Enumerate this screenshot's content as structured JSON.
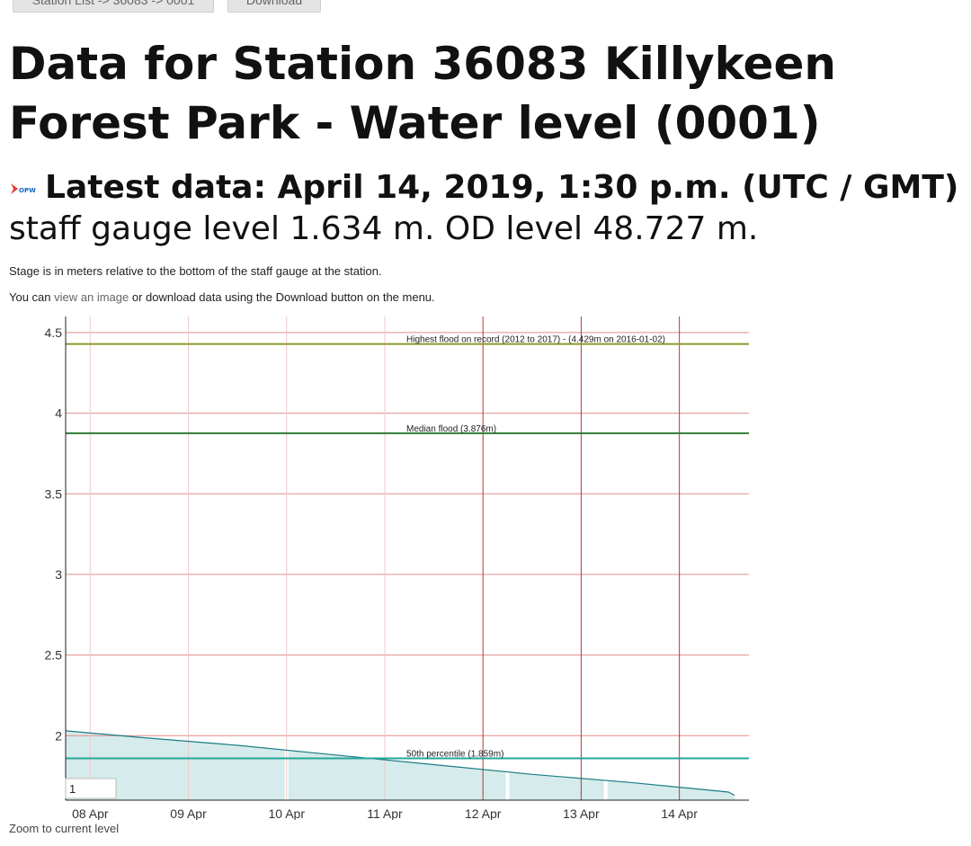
{
  "nav": {
    "breadcrumb_label": "Station List -> 36083 -> 0001",
    "download_label": "Download"
  },
  "header": {
    "title": "Data for Station 36083 Killykeen Forest Park - Water level (0001)"
  },
  "latest": {
    "prefix": "Latest data: April 14, 2019, 1:30 p.m. (UTC / GMT)",
    "staff_text": " staff gauge level 1.634 m. OD level 48.727 m.",
    "logo_text": "OPW"
  },
  "notes": {
    "stage": "Stage is in meters relative to the bottom of the staff gauge at the station.",
    "you_can": "You can ",
    "view_link": "view an image",
    "rest": " or download data using the Download button on the menu."
  },
  "chart_data": {
    "type": "area",
    "x": [
      "2019-04-07T18:00",
      "2019-04-08T12:00",
      "2019-04-09T12:00",
      "2019-04-10T12:00",
      "2019-04-11T12:00",
      "2019-04-12T12:00",
      "2019-04-13T12:00",
      "2019-04-14T12:00",
      "2019-04-14T13:30"
    ],
    "series": [
      {
        "values": [
          2.03,
          1.99,
          1.94,
          1.88,
          1.82,
          1.76,
          1.71,
          1.65,
          1.63
        ],
        "color": "#1b7c84"
      }
    ],
    "xticks": [
      "08 Apr",
      "09 Apr",
      "10 Apr",
      "11 Apr",
      "12 Apr",
      "13 Apr",
      "14 Apr"
    ],
    "yticks": [
      "2",
      "2.5",
      "3",
      "3.5",
      "4",
      "4.5"
    ],
    "ylim": [
      1.6,
      4.6
    ],
    "gaps": [
      "2019-04-10T00:00",
      "2019-04-12T06:00",
      "2019-04-13T06:00"
    ],
    "grid": true,
    "reference_lines": [
      {
        "label": "Highest flood on record (2012 to 2017) - (4.429m on 2016-01-02)",
        "value": 4.429,
        "color": "#8e9a2c"
      },
      {
        "label": "Median flood (3.876m)",
        "value": 3.876,
        "color": "#2e7d32"
      },
      {
        "label": "50th percentile (1.859m)",
        "value": 1.859,
        "color": "#26a69a"
      }
    ],
    "colors": {
      "fill": "#d6ebeb",
      "stroke": "#1b7c84",
      "grid_h": "#e38b8b",
      "grid_v_light": "#efc9c9",
      "grid_v_dark": "#b33a3a"
    },
    "zoom_input_value": "1",
    "zoom_link": "Zoom to current level"
  }
}
